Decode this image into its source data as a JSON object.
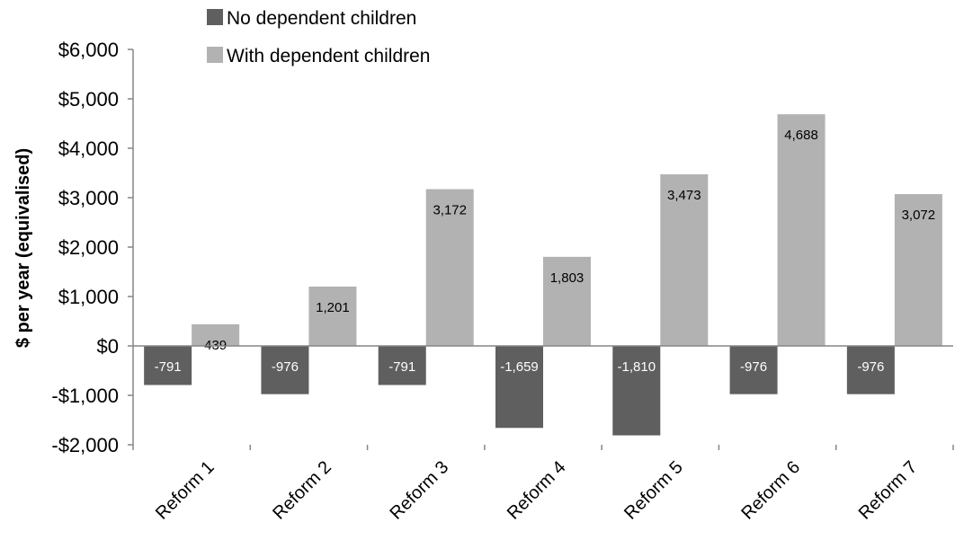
{
  "chart_data": {
    "type": "bar",
    "title": "",
    "xlabel": "",
    "ylabel": "$ per year (equivalised)",
    "ylim": [
      -2000,
      6000
    ],
    "yticks": [
      6000,
      5000,
      4000,
      3000,
      2000,
      1000,
      0,
      -1000,
      -2000
    ],
    "ytick_labels": [
      "$6,000",
      "$5,000",
      "$4,000",
      "$3,000",
      "$2,000",
      "$1,000",
      "$0",
      "-$1,000",
      "-$2,000"
    ],
    "categories": [
      "Reform 1",
      "Reform 2",
      "Reform 3",
      "Reform 4",
      "Reform 5",
      "Reform 6",
      "Reform 7"
    ],
    "series": [
      {
        "name": "No dependent children",
        "color": "#5f5f5f",
        "values": [
          -791,
          -976,
          -791,
          -1659,
          -1810,
          -976,
          -976
        ],
        "labels": [
          "-791",
          "-976",
          "-791",
          "-1,659",
          "-1,810",
          "-976",
          "-976"
        ]
      },
      {
        "name": "With dependent children",
        "color": "#b2b2b2",
        "values": [
          439,
          1201,
          3172,
          1803,
          3473,
          4688,
          3072
        ],
        "labels": [
          "439",
          "1,201",
          "3,172",
          "1,803",
          "3,473",
          "4,688",
          "3,072"
        ]
      }
    ],
    "grid": false,
    "legend_position": "top-center"
  }
}
